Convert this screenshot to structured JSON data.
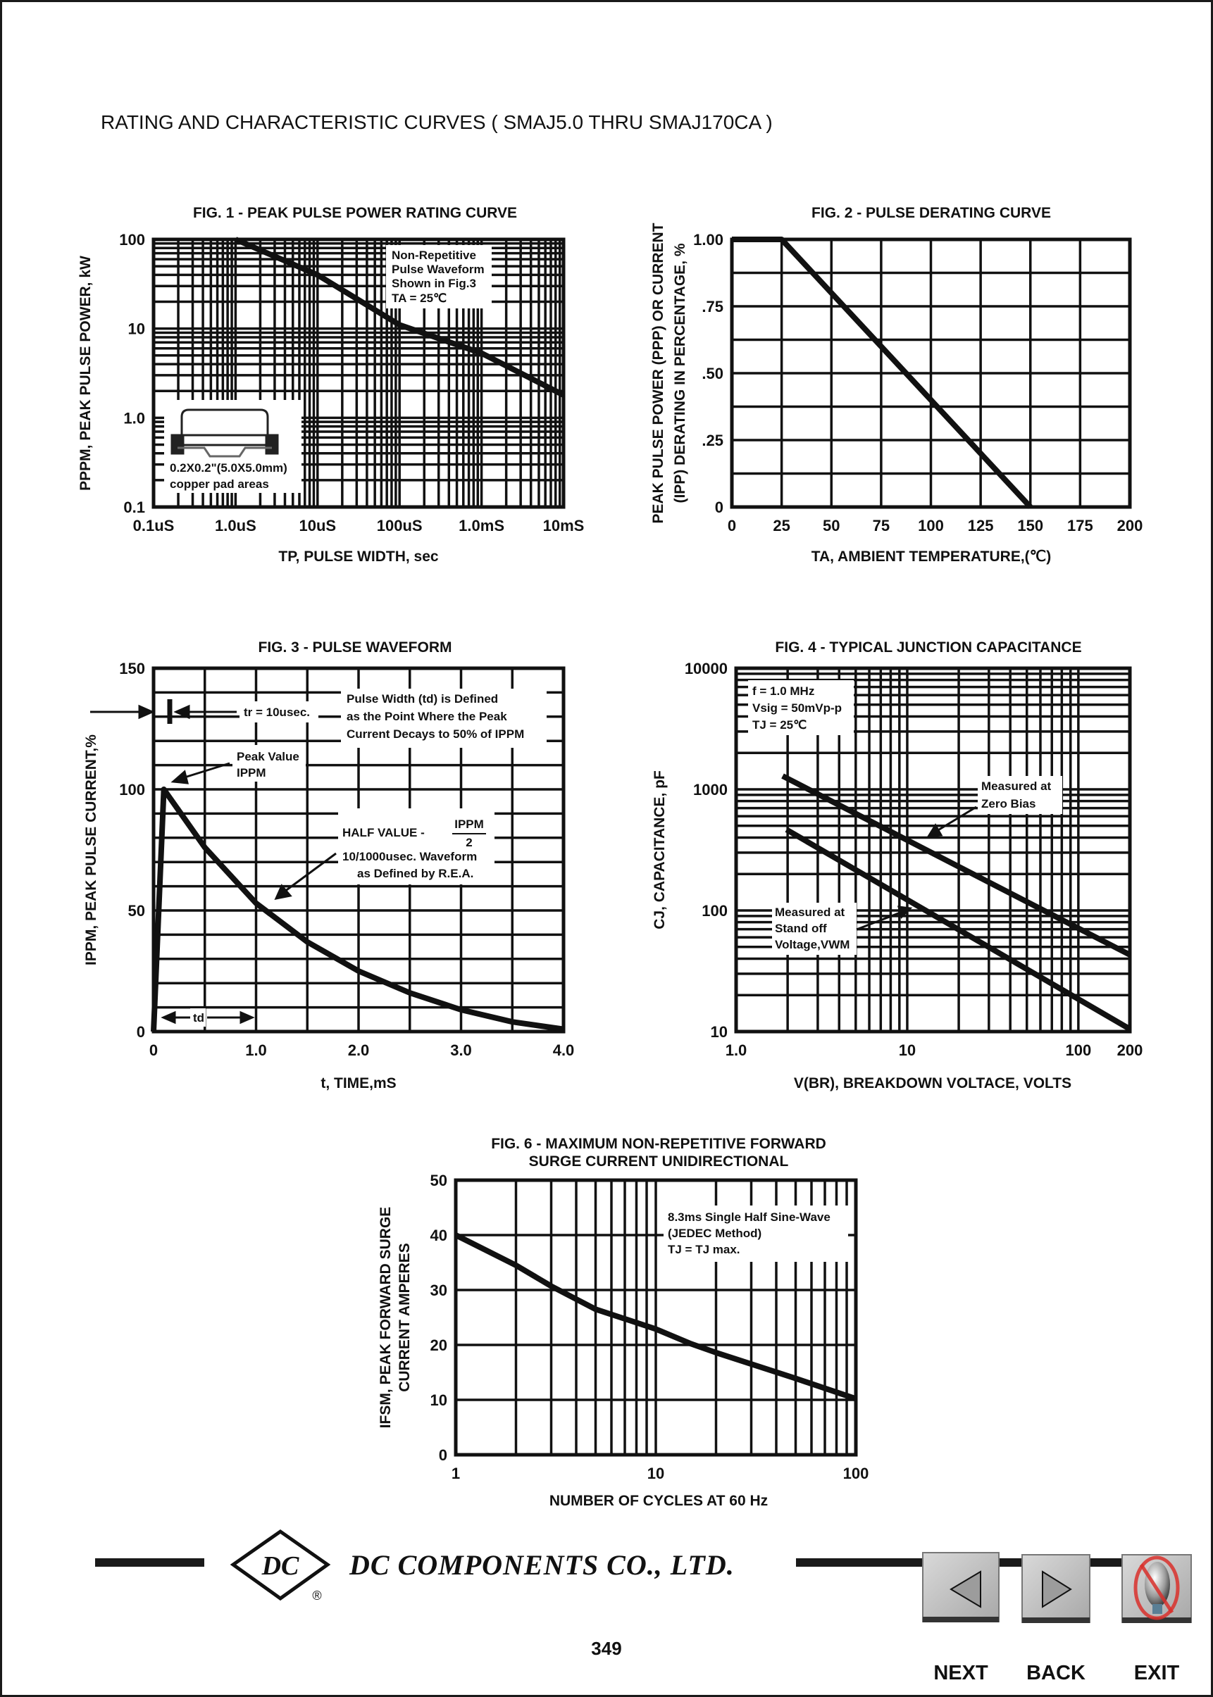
{
  "header": {
    "title": "RATING AND CHARACTERISTIC CURVES ( SMAJ5.0 THRU SMAJ170CA )"
  },
  "chart_data": [
    {
      "type": "line",
      "title": "FIG. 1 - PEAK PULSE POWER RATING CURVE",
      "xlabel": "TP, PULSE WIDTH, sec",
      "ylabel": "PPPM, PEAK PULSE POWER, kW",
      "x_scale": "log",
      "y_scale": "log",
      "xlim": [
        1e-07,
        0.01
      ],
      "ylim": [
        0.1,
        100
      ],
      "x_ticks": [
        1e-07,
        1e-06,
        1e-05,
        0.0001,
        0.001,
        0.01
      ],
      "x_tick_labels": [
        "0.1uS",
        "1.0uS",
        "10uS",
        "100uS",
        "1.0mS",
        "10mS"
      ],
      "y_ticks": [
        100,
        10,
        1,
        0.1
      ],
      "y_tick_labels": [
        "100",
        "10",
        "1.0",
        "0.1"
      ],
      "grid": true,
      "series": [
        {
          "x": [
            1e-06,
            1e-05,
            0.0001,
            0.001,
            0.01
          ],
          "y": [
            100,
            40,
            11,
            5.3,
            1.8
          ]
        }
      ],
      "annotations": [
        "Non-Repetitive",
        "Pulse Waveform",
        "Shown in Fig.3",
        "TA = 25℃",
        "0.2X0.2\"(5.0X5.0mm)",
        "copper pad areas"
      ]
    },
    {
      "type": "line",
      "title": "FIG. 2 - PULSE DERATING CURVE",
      "xlabel": "TA, AMBIENT TEMPERATURE,(℃)",
      "ylabel": [
        "PEAK PULSE POWER (PPP) OR CURRENT",
        "(IPP) DERATING IN PERCENTAGE, %"
      ],
      "x_scale": "linear",
      "y_scale": "linear",
      "xlim": [
        0,
        200
      ],
      "ylim": [
        0,
        1.0
      ],
      "x_ticks": [
        0,
        25,
        50,
        75,
        100,
        125,
        150,
        175,
        200
      ],
      "x_tick_labels": [
        "0",
        "25",
        "50",
        "75",
        "100",
        "125",
        "150",
        "175",
        "200"
      ],
      "y_ticks": [
        1.0,
        0.75,
        0.5,
        0.25,
        0
      ],
      "y_tick_labels": [
        "1.00",
        ".75",
        ".50",
        ".25",
        "0"
      ],
      "grid": true,
      "series": [
        {
          "x": [
            0,
            25,
            150
          ],
          "y": [
            1.0,
            1.0,
            0
          ]
        }
      ]
    },
    {
      "type": "line",
      "title": "FIG. 3 - PULSE WAVEFORM",
      "xlabel": "t, TIME,mS",
      "ylabel": "IPPM, PEAK PULSE CURRENT,%",
      "x_scale": "linear",
      "y_scale": "linear",
      "xlim": [
        0,
        4.0
      ],
      "ylim": [
        0,
        150
      ],
      "x_ticks": [
        0,
        1,
        2,
        3,
        4
      ],
      "x_tick_labels": [
        "0",
        "1.0",
        "2.0",
        "3.0",
        "4.0"
      ],
      "y_ticks": [
        150,
        100,
        50,
        0
      ],
      "y_tick_labels": [
        "150",
        "100",
        "50",
        "0"
      ],
      "grid": true,
      "series": [
        {
          "x": [
            0,
            0.05,
            0.1,
            0.5,
            1.0,
            1.5,
            2.0,
            2.5,
            3.0,
            3.5,
            4.0
          ],
          "y": [
            0,
            50,
            100,
            76,
            53,
            37,
            25,
            16,
            9,
            4,
            1
          ]
        }
      ],
      "annotations": [
        "tr = 10usec.",
        "Pulse Width (td) is Defined",
        "as the Point Where the Peak",
        "Current Decays to 50% of IPPM",
        "Peak Value",
        "IPPM",
        "HALF VALUE -",
        "IPPM",
        "2",
        "10/1000usec. Waveform",
        "as Defined by R.E.A.",
        "td"
      ]
    },
    {
      "type": "line",
      "title": "FIG. 4 - TYPICAL JUNCTION CAPACITANCE",
      "xlabel": "V(BR), BREAKDOWN VOLTACE, VOLTS",
      "ylabel": "CJ, CAPACITANCE, pF",
      "x_scale": "log",
      "y_scale": "log",
      "xlim": [
        1,
        200
      ],
      "ylim": [
        10,
        10000
      ],
      "x_ticks": [
        1,
        10,
        100,
        200
      ],
      "x_tick_labels": [
        "1.0",
        "10",
        "100",
        "200"
      ],
      "y_ticks": [
        10000,
        1000,
        100,
        10
      ],
      "y_tick_labels": [
        "10000",
        "1000",
        "100",
        "10"
      ],
      "grid": true,
      "series": [
        {
          "x": [
            1.87,
            200
          ],
          "y": [
            1290,
            43
          ]
        },
        {
          "x": [
            1.97,
            200
          ],
          "y": [
            465,
            10.5
          ]
        }
      ],
      "annotations": [
        "f = 1.0 MHz",
        "Vsig = 50mVp-p",
        "TJ = 25℃",
        "Measured at",
        "Zero Bias",
        "Measured at",
        "Stand off",
        "Voltage,VWM"
      ]
    },
    {
      "type": "line",
      "title": [
        "FIG. 6 - MAXIMUM NON-REPETITIVE FORWARD",
        "SURGE CURRENT UNIDIRECTIONAL"
      ],
      "xlabel": "NUMBER OF CYCLES AT 60 Hz",
      "ylabel": [
        "IFSM, PEAK FORWARD SURGE",
        "CURRENT AMPERES"
      ],
      "x_scale": "log",
      "y_scale": "linear",
      "xlim": [
        1,
        100
      ],
      "ylim": [
        0,
        50
      ],
      "x_ticks": [
        1,
        10,
        100
      ],
      "x_tick_labels": [
        "1",
        "10",
        "100"
      ],
      "y_ticks": [
        50,
        40,
        30,
        20,
        10,
        0
      ],
      "y_tick_labels": [
        "50",
        "40",
        "30",
        "20",
        "10",
        "0"
      ],
      "grid": true,
      "series": [
        {
          "x": [
            1,
            2,
            3,
            5,
            10,
            15,
            20,
            50,
            100
          ],
          "y": [
            40,
            34.5,
            30.7,
            26.5,
            22.9,
            20.2,
            18.6,
            13.9,
            10.2
          ]
        }
      ],
      "annotations": [
        "8.3ms Single Half Sine-Wave",
        "(JEDEC Method)",
        "TJ = TJ max."
      ]
    }
  ],
  "footer": {
    "logo_text": "DC",
    "registered": "®",
    "company": "DC COMPONENTS CO., LTD.",
    "page_number": "349",
    "buttons": [
      {
        "label": "NEXT",
        "icon": "left-triangle-icon"
      },
      {
        "label": "BACK",
        "icon": "right-triangle-icon"
      },
      {
        "label": "EXIT",
        "icon": "no-sign-bulb-icon"
      }
    ],
    "exit_color": "#d9302c"
  }
}
